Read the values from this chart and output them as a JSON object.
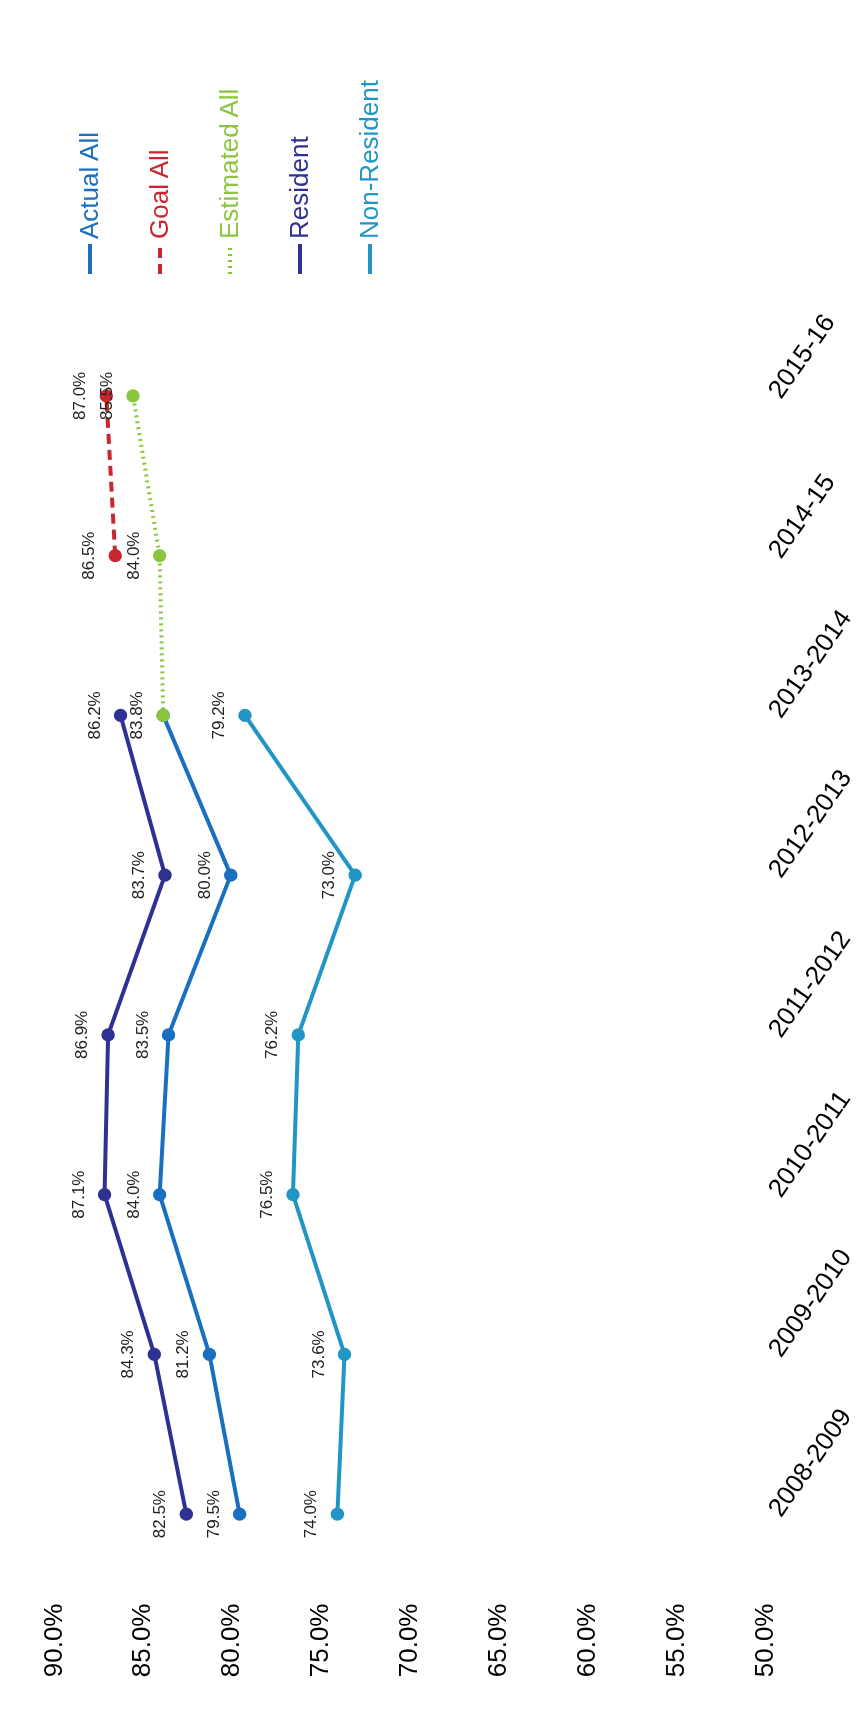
{
  "chart_data": {
    "type": "line",
    "orientation": "horizontal",
    "categories": [
      "2015-16",
      "2014-15",
      "2013-2014",
      "2012-2013",
      "2011-2012",
      "2010-2011",
      "2009-2010",
      "2008-2009"
    ],
    "series": [
      {
        "name": "Actual All",
        "color": "#1a6fc0",
        "line_style": "solid",
        "values": [
          null,
          null,
          83.8,
          80.0,
          83.5,
          84.0,
          81.2,
          79.5
        ],
        "value_labels": [
          null,
          null,
          "83.8%",
          "80.0%",
          "83.5%",
          "84.0%",
          "81.2%",
          "79.5%"
        ]
      },
      {
        "name": "Goal All",
        "color": "#c8282d",
        "line_style": "dashed",
        "values": [
          87.0,
          86.5,
          null,
          null,
          null,
          null,
          null,
          null
        ],
        "value_labels": [
          "87.0%",
          "86.5%",
          null,
          null,
          null,
          null,
          null,
          null
        ]
      },
      {
        "name": "Estimated All",
        "color": "#8cc63f",
        "line_style": "dotted",
        "values": [
          85.5,
          84.0,
          83.8,
          null,
          null,
          null,
          null,
          null
        ],
        "value_labels": [
          "85.5%",
          "84.0%",
          null,
          null,
          null,
          null,
          null,
          null
        ]
      },
      {
        "name": "Resident",
        "color": "#2e3192",
        "line_style": "solid",
        "values": [
          null,
          null,
          86.2,
          83.7,
          86.9,
          87.1,
          84.3,
          82.5
        ],
        "value_labels": [
          null,
          null,
          "86.2%",
          "83.7%",
          "86.9%",
          "87.1%",
          "84.3%",
          "82.5%"
        ]
      },
      {
        "name": "Non-Resident",
        "color": "#2196c4",
        "line_style": "solid",
        "values": [
          null,
          null,
          79.2,
          73.0,
          76.2,
          76.5,
          73.6,
          74.0
        ],
        "value_labels": [
          null,
          null,
          "79.2%",
          "73.0%",
          "76.2%",
          "76.5%",
          "73.6%",
          "74.0%"
        ]
      }
    ],
    "xlim": [
      90,
      50
    ],
    "xticks": [
      {
        "value": 90,
        "label": "90.0%"
      },
      {
        "value": 85,
        "label": "85.0%"
      },
      {
        "value": 80,
        "label": "80.0%"
      },
      {
        "value": 75,
        "label": "75.0%"
      },
      {
        "value": 70,
        "label": "70.0%"
      },
      {
        "value": 65,
        "label": "65.0%"
      },
      {
        "value": 60,
        "label": "60.0%"
      },
      {
        "value": 55,
        "label": "55.0%"
      },
      {
        "value": 50,
        "label": "50.0%"
      }
    ],
    "grid": false,
    "legend": "top",
    "marker": "circle"
  }
}
